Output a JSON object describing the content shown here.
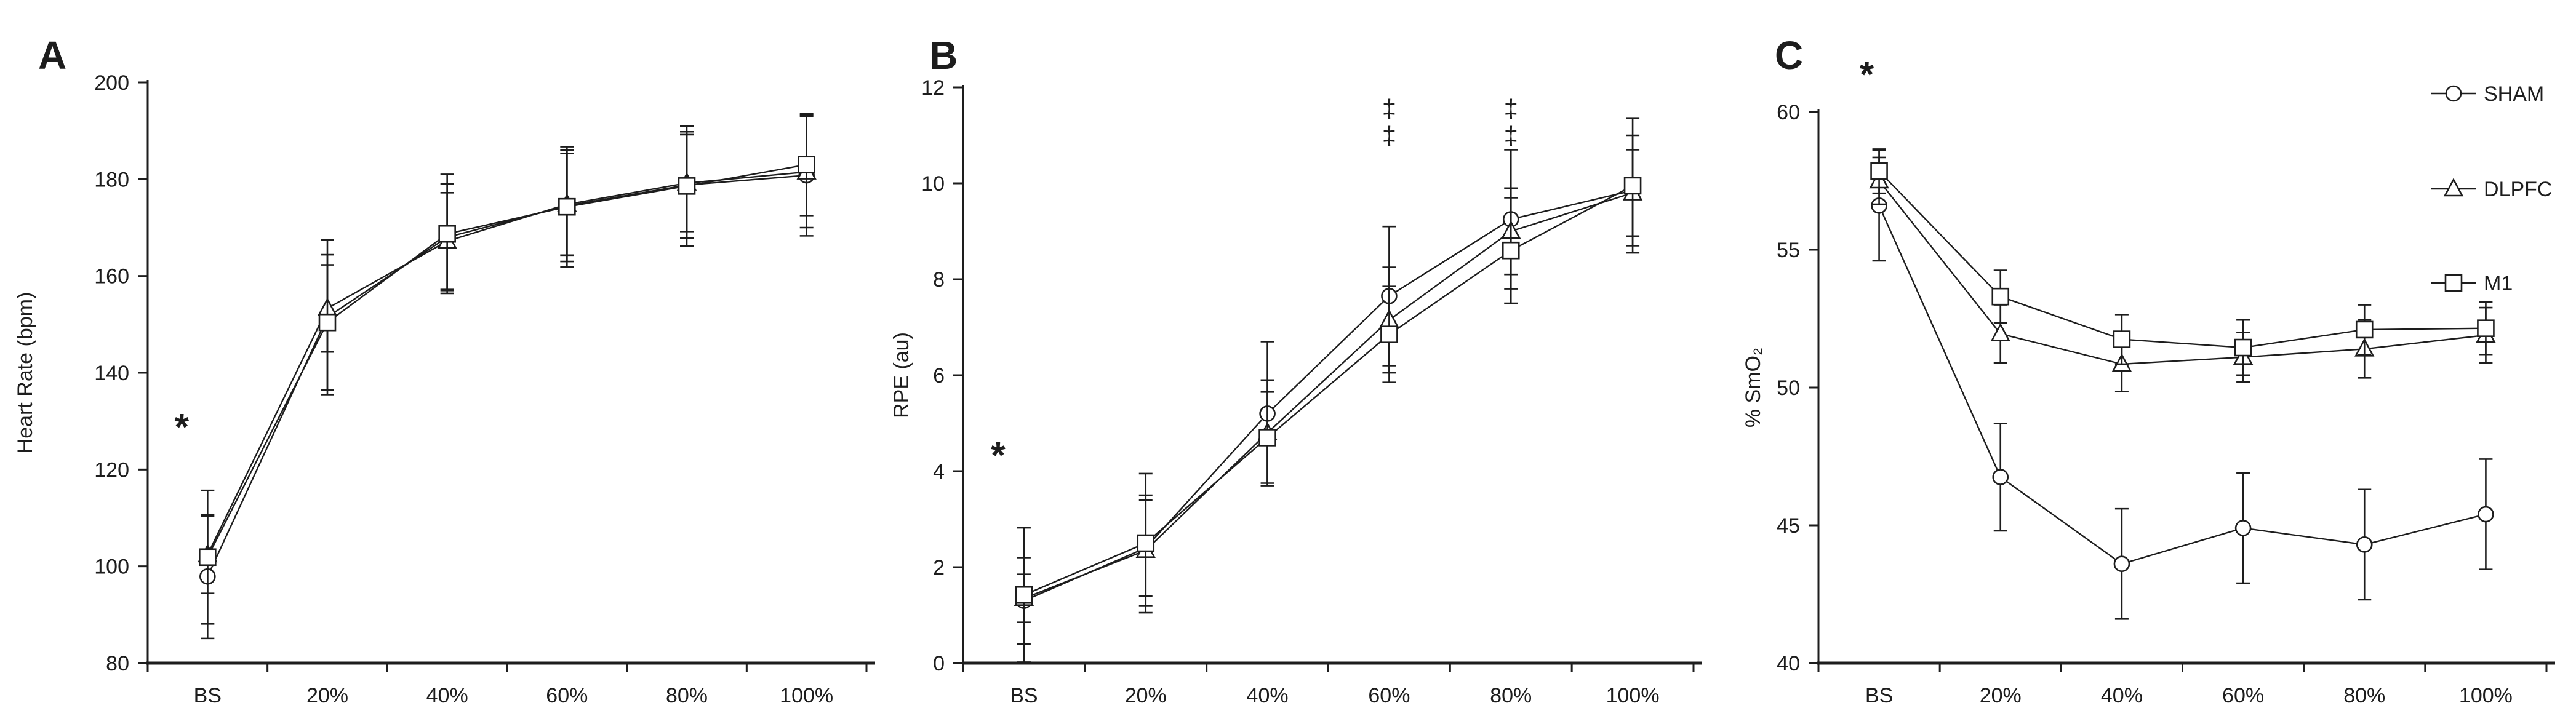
{
  "figure": {
    "background": "#ffffff",
    "ink": "#1d1d1d"
  },
  "chart_data": [
    {
      "type": "line",
      "panel_label": "A",
      "title": "",
      "xlabel": "",
      "ylabel": "Heart Rate (bpm)",
      "ylim": [
        80,
        200
      ],
      "ytick_step": 20,
      "ytick_labels": [
        "80",
        "100",
        "120",
        "140",
        "160",
        "180",
        "200"
      ],
      "grid": false,
      "legend_position": "none",
      "categories": [
        "BS",
        "20%",
        "40%",
        "60%",
        "80%",
        "100%"
      ],
      "series": [
        {
          "name": "SHAM",
          "marker": "circle",
          "values": [
            97.9,
            151.5,
            168.0,
            174.5,
            178.8,
            180.8
          ],
          "errors": [
            12.8,
            16.0,
            11.0,
            11.5,
            11.0,
            12.5
          ]
        },
        {
          "name": "DLPFC",
          "marker": "triangle",
          "values": [
            102.4,
            153.3,
            167.2,
            174.8,
            179.2,
            181.5
          ],
          "errors": [
            8.0,
            9.0,
            10.0,
            10.5,
            10.0,
            11.5
          ]
        },
        {
          "name": "M1",
          "marker": "square",
          "values": [
            101.9,
            150.4,
            168.7,
            174.3,
            178.6,
            183.0
          ],
          "errors": [
            13.8,
            14.0,
            12.3,
            12.4,
            12.4,
            10.5
          ]
        }
      ],
      "annotations": [
        {
          "type": "asterisk",
          "text": "*",
          "category": "BS",
          "y": 129,
          "dx": -42
        }
      ]
    },
    {
      "type": "line",
      "panel_label": "B",
      "title": "",
      "xlabel": "",
      "ylabel": "RPE (au)",
      "ylim": [
        0,
        12
      ],
      "ytick_step": 2,
      "ytick_labels": [
        "0",
        "2",
        "4",
        "6",
        "8",
        "10",
        "12"
      ],
      "grid": false,
      "legend_position": "none",
      "categories": [
        "BS",
        "20%",
        "40%",
        "60%",
        "80%",
        "100%"
      ],
      "series": [
        {
          "name": "SHAM",
          "marker": "circle",
          "values": [
            1.3,
            2.4,
            5.2,
            7.65,
            9.25,
            9.85
          ],
          "errors": [
            0.9,
            1.0,
            1.5,
            1.45,
            1.45,
            1.15
          ]
        },
        {
          "name": "DLPFC",
          "marker": "triangle",
          "values": [
            1.35,
            2.35,
            4.8,
            7.15,
            9.0,
            9.8
          ],
          "errors": [
            0.5,
            1.15,
            1.1,
            1.1,
            0.9,
            0.9
          ]
        },
        {
          "name": "M1",
          "marker": "square",
          "values": [
            1.42,
            2.5,
            4.7,
            6.85,
            8.6,
            9.95
          ],
          "errors": [
            1.4,
            1.45,
            0.95,
            1.0,
            1.1,
            1.4
          ]
        }
      ],
      "annotations": [
        {
          "type": "asterisk",
          "text": "*",
          "category": "BS",
          "y": 4.35,
          "dx": -42
        },
        {
          "type": "daggers",
          "text": "‡",
          "category": "60%",
          "y": 11.55,
          "dx": 0
        },
        {
          "type": "daggers",
          "text": "‡",
          "category": "80%",
          "y": 11.55,
          "dx": 0
        }
      ]
    },
    {
      "type": "line",
      "panel_label": "C",
      "title": "",
      "xlabel": "",
      "ylabel": "% SmO₂",
      "ylim": [
        40,
        60
      ],
      "ytick_step": 5,
      "ytick_labels": [
        "40",
        "45",
        "50",
        "55",
        "60"
      ],
      "grid": false,
      "legend_position": "top-right",
      "categories": [
        "BS",
        "20%",
        "40%",
        "60%",
        "80%",
        "100%"
      ],
      "series": [
        {
          "name": "SHAM",
          "marker": "circle",
          "values": [
            56.6,
            46.75,
            43.6,
            44.9,
            44.3,
            45.4
          ],
          "errors": [
            2.0,
            1.95,
            2.0,
            2.0,
            2.0,
            2.0
          ]
        },
        {
          "name": "DLPFC",
          "marker": "triangle",
          "values": [
            57.5,
            51.95,
            50.85,
            51.1,
            51.4,
            51.9
          ],
          "errors": [
            0.85,
            1.05,
            1.0,
            0.9,
            1.05,
            1.0
          ]
        },
        {
          "name": "M1",
          "marker": "square",
          "values": [
            57.85,
            53.3,
            51.75,
            51.45,
            52.1,
            52.15
          ],
          "errors": [
            0.8,
            0.95,
            0.9,
            1.0,
            0.9,
            0.95
          ]
        }
      ],
      "annotations": [
        {
          "type": "asterisk",
          "text": "*",
          "category": "BS",
          "y": 61.4,
          "dx": -20
        }
      ],
      "legend": {
        "entries": [
          {
            "label": "SHAM",
            "marker": "circle"
          },
          {
            "label": "DLPFC",
            "marker": "triangle"
          },
          {
            "label": "M1",
            "marker": "square"
          }
        ]
      }
    }
  ]
}
